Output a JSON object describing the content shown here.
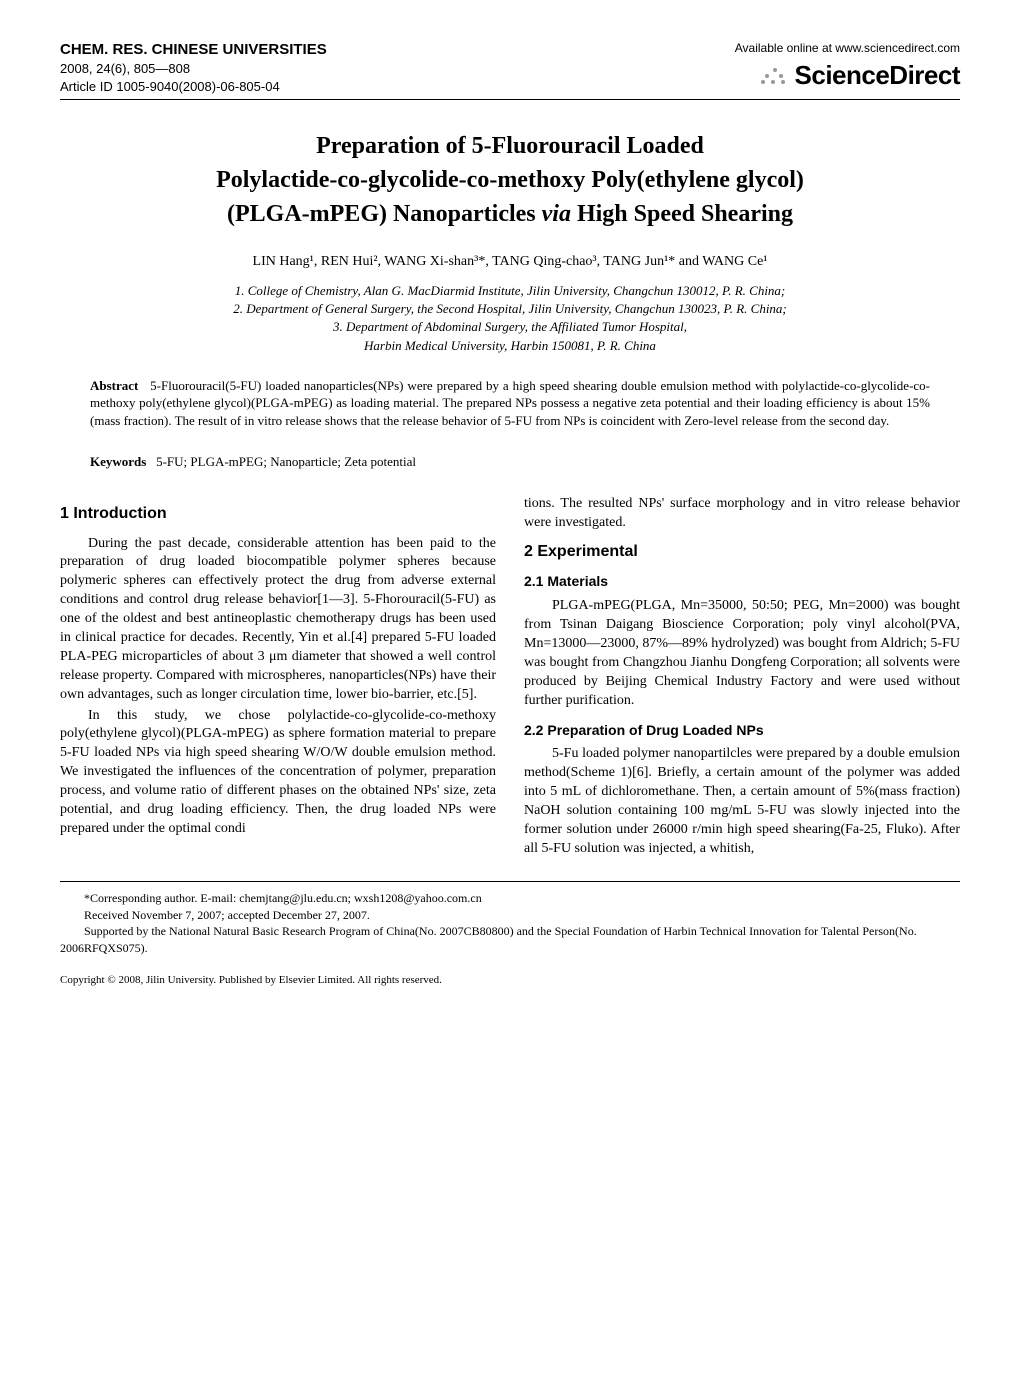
{
  "header": {
    "journal": "CHEM. RES. CHINESE UNIVERSITIES",
    "issue": "2008, 24(6), 805—808",
    "articleId": "Article ID 1005-9040(2008)-06-805-04",
    "available": "Available online at www.sciencedirect.com",
    "brand": "ScienceDirect"
  },
  "title": {
    "line1": "Preparation of 5-Fluorouracil Loaded",
    "line2": "Polylactide-co-glycolide-co-methoxy Poly(ethylene glycol)",
    "line3": "(PLGA-mPEG) Nanoparticles via High Speed Shearing"
  },
  "authors": "LIN Hang¹, REN Hui², WANG Xi-shan³*, TANG Qing-chao³, TANG Jun¹* and WANG Ce¹",
  "affiliations": {
    "a1": "1. College of Chemistry, Alan G. MacDiarmid Institute, Jilin University, Changchun 130012, P. R. China;",
    "a2": "2. Department of General Surgery, the Second Hospital, Jilin University, Changchun 130023, P. R. China;",
    "a3": "3. Department of Abdominal Surgery, the Affiliated Tumor Hospital,",
    "a4": "Harbin Medical University, Harbin 150081, P. R. China"
  },
  "abstract": {
    "label": "Abstract",
    "text": "5-Fluorouracil(5-FU) loaded nanoparticles(NPs) were prepared by a high speed shearing double emulsion method with polylactide-co-glycolide-co-methoxy poly(ethylene glycol)(PLGA-mPEG) as loading material. The prepared NPs possess a negative zeta potential and their loading efficiency is about 15%(mass fraction). The result of in vitro release shows that the release behavior of 5-FU from NPs is coincident with Zero-level release from the second day."
  },
  "keywords": {
    "label": "Keywords",
    "text": "5-FU; PLGA-mPEG; Nanoparticle; Zeta potential"
  },
  "sections": {
    "intro_h": "1   Introduction",
    "intro_p1": "During the past decade, considerable attention has been paid to the preparation of drug loaded biocompatible polymer spheres because polymeric spheres can effectively protect the drug from adverse external conditions and control drug release behavior[1—3]. 5-Fhorouracil(5-FU) as one of the oldest and best antineoplastic chemotherapy drugs has been used in clinical practice for decades. Recently, Yin et al.[4] prepared 5-FU loaded PLA-PEG microparticles of about 3 μm diameter that showed a well control release property. Compared with microspheres, nanoparticles(NPs) have their own advantages, such as longer circulation time, lower bio-barrier, etc.[5].",
    "intro_p2": "In this study, we chose polylactide-co-glycolide-co-methoxy poly(ethylene glycol)(PLGA-mPEG) as sphere formation material to prepare 5-FU loaded NPs via high speed shearing W/O/W double emulsion method. We investigated the influences of the concentration of polymer, preparation process, and volume ratio of different phases on the obtained NPs' size, zeta potential, and drug loading efficiency. Then, the drug loaded NPs were prepared under the optimal condi",
    "intro_p3_bridge": "tions. The resulted NPs' surface morphology and in vitro release behavior were investigated.",
    "exp_h": "2   Experimental",
    "mat_h": "2.1   Materials",
    "mat_p1": "PLGA-mPEG(PLGA, Mn=35000, 50:50; PEG, Mn=2000) was bought from Tsinan Daigang Bioscience Corporation; poly vinyl alcohol(PVA, Mn=13000—23000, 87%—89% hydrolyzed) was bought from Aldrich; 5-FU was bought from Changzhou Jianhu Dongfeng Corporation; all solvents were produced by Beijing Chemical Industry Factory and were used without further purification.",
    "prep_h": "2.2   Preparation of Drug Loaded NPs",
    "prep_p1": "5-Fu loaded polymer nanopartilcles were prepared by a double emulsion method(Scheme 1)[6]. Briefly, a certain amount of the polymer was added into 5 mL of dichloromethane. Then, a certain amount of 5%(mass fraction) NaOH solution containing 100 mg/mL 5-FU was slowly injected into the former solution under 26000 r/min high speed shearing(Fa-25, Fluko). After all 5-FU solution was injected, a whitish,"
  },
  "footnotes": {
    "corresponding": "*Corresponding author. E-mail: chemjtang@jlu.edu.cn; wxsh1208@yahoo.com.cn",
    "received": "Received November 7, 2007; accepted December 27, 2007.",
    "support": "Supported by the National Natural Basic Research Program of China(No. 2007CB80800) and the Special Foundation of Harbin Technical Innovation for Talental Person(No. 2006RFQXS075)."
  },
  "copyright": "Copyright © 2008, Jilin University. Published by Elsevier Limited. All rights reserved."
}
